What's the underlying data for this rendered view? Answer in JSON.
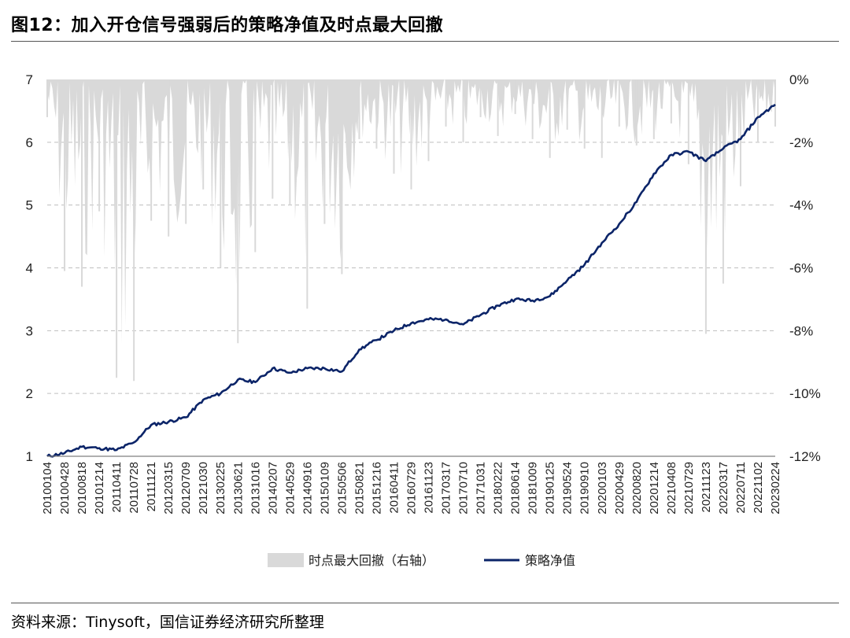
{
  "header": {
    "title": "图12：加入开仓信号强弱后的策略净值及时点最大回撤"
  },
  "footer": {
    "source": "资料来源：Tinysoft，国信证券经济研究所整理"
  },
  "chart_data": {
    "type": "line",
    "title": "图12：加入开仓信号强弱后的策略净值及时点最大回撤",
    "x_tick_labels": [
      "20100104",
      "20100428",
      "20100818",
      "20101214",
      "20110411",
      "20110728",
      "20111121",
      "20120315",
      "20120709",
      "20121030",
      "20130225",
      "20130621",
      "20131016",
      "20140207",
      "20140529",
      "20140916",
      "20150109",
      "20150506",
      "20150821",
      "20151216",
      "20160411",
      "20160729",
      "20161123",
      "20170317",
      "20170710",
      "20171031",
      "20180222",
      "20180614",
      "20181009",
      "20190125",
      "20190524",
      "20190910",
      "20200103",
      "20200429",
      "20200820",
      "20201214",
      "20210408",
      "20210729",
      "20211123",
      "20220317",
      "20220711",
      "20221102",
      "20230224"
    ],
    "left_axis": {
      "min": 1,
      "max": 7,
      "ticks": [
        "7",
        "6",
        "5",
        "4",
        "3",
        "2",
        "1"
      ]
    },
    "right_axis": {
      "min": -12,
      "max": 0,
      "unit": "%",
      "ticks": [
        "0%",
        "-2%",
        "-4%",
        "-6%",
        "-8%",
        "-10%",
        "-12%"
      ]
    },
    "grid": "horizontal dashed",
    "legend_position": "bottom",
    "series": [
      {
        "name": "时点最大回撤（右轴）",
        "type": "area",
        "axis": "right",
        "color": "#d9d9d9",
        "x": [
          0,
          1,
          2,
          3,
          4,
          5,
          6,
          7,
          8,
          9,
          10,
          11,
          12,
          13,
          14,
          15,
          16,
          17,
          18,
          19,
          20,
          21,
          22,
          23,
          24,
          25,
          26,
          27,
          28,
          29,
          30,
          31,
          32,
          33,
          34,
          35,
          36,
          37,
          38,
          39,
          40,
          41,
          42
        ],
        "values": [
          -1.2,
          -6.1,
          -6.6,
          -4.2,
          -9.5,
          -9.6,
          -4.5,
          -5.0,
          -4.6,
          -3.5,
          -6.0,
          -8.4,
          -5.5,
          -3.8,
          -4.0,
          -7.3,
          -4.6,
          -6.2,
          -1.9,
          -2.2,
          -3.0,
          -3.5,
          -2.6,
          -1.5,
          -2.0,
          -1.2,
          -1.8,
          -1.1,
          -1.9,
          -2.5,
          -1.6,
          -2.2,
          -2.5,
          -1.5,
          -2.1,
          -1.9,
          -1.4,
          -2.7,
          -8.1,
          -6.5,
          -3.4,
          -2.0,
          -1.5
        ]
      },
      {
        "name": "策略净值",
        "type": "line",
        "axis": "left",
        "color": "#0b2468",
        "x": [
          0,
          1,
          2,
          3,
          4,
          5,
          6,
          7,
          8,
          9,
          10,
          11,
          12,
          13,
          14,
          15,
          16,
          17,
          18,
          19,
          20,
          21,
          22,
          23,
          24,
          25,
          26,
          27,
          28,
          29,
          30,
          31,
          32,
          33,
          34,
          35,
          36,
          37,
          38,
          39,
          40,
          41,
          42
        ],
        "values": [
          1.0,
          1.05,
          1.15,
          1.13,
          1.1,
          1.22,
          1.5,
          1.55,
          1.62,
          1.9,
          2.0,
          2.22,
          2.18,
          2.4,
          2.33,
          2.4,
          2.4,
          2.35,
          2.7,
          2.85,
          3.0,
          3.12,
          3.18,
          3.18,
          3.1,
          3.25,
          3.4,
          3.5,
          3.48,
          3.55,
          3.8,
          4.05,
          4.4,
          4.7,
          5.05,
          5.5,
          5.8,
          5.85,
          5.7,
          5.9,
          6.05,
          6.4,
          6.6
        ]
      }
    ]
  }
}
